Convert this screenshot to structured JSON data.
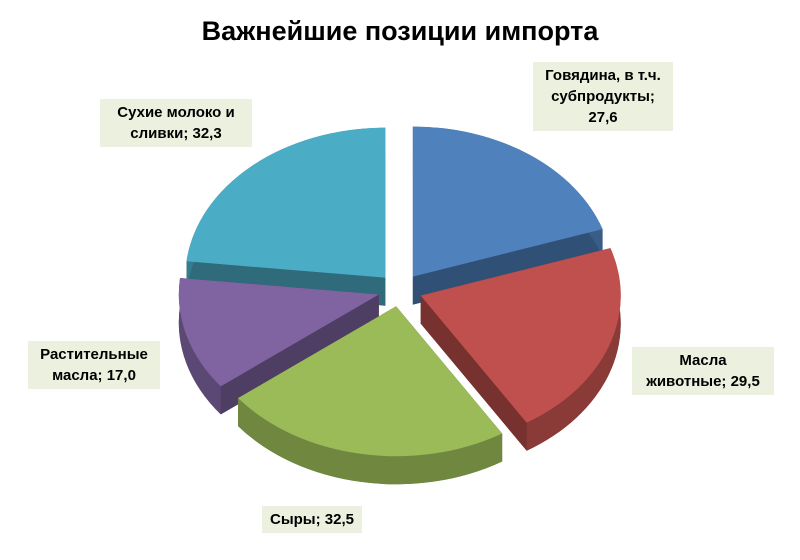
{
  "chart_data": {
    "type": "pie",
    "title": "Важнейшие позиции импорта",
    "values": [
      27.6,
      29.5,
      32.5,
      17.0,
      32.3
    ],
    "value_labels": [
      "Говядина, в т.ч. субпродукты; 27,6",
      "Масла животные; 29,5",
      "Сыры; 32,5",
      "Растительные масла; 17,0",
      "Сухие молоко и сливки; 32,3"
    ],
    "colors": [
      "#4f81bd",
      "#c0504d",
      "#9bbb59",
      "#8064a2",
      "#4bacc6"
    ]
  }
}
